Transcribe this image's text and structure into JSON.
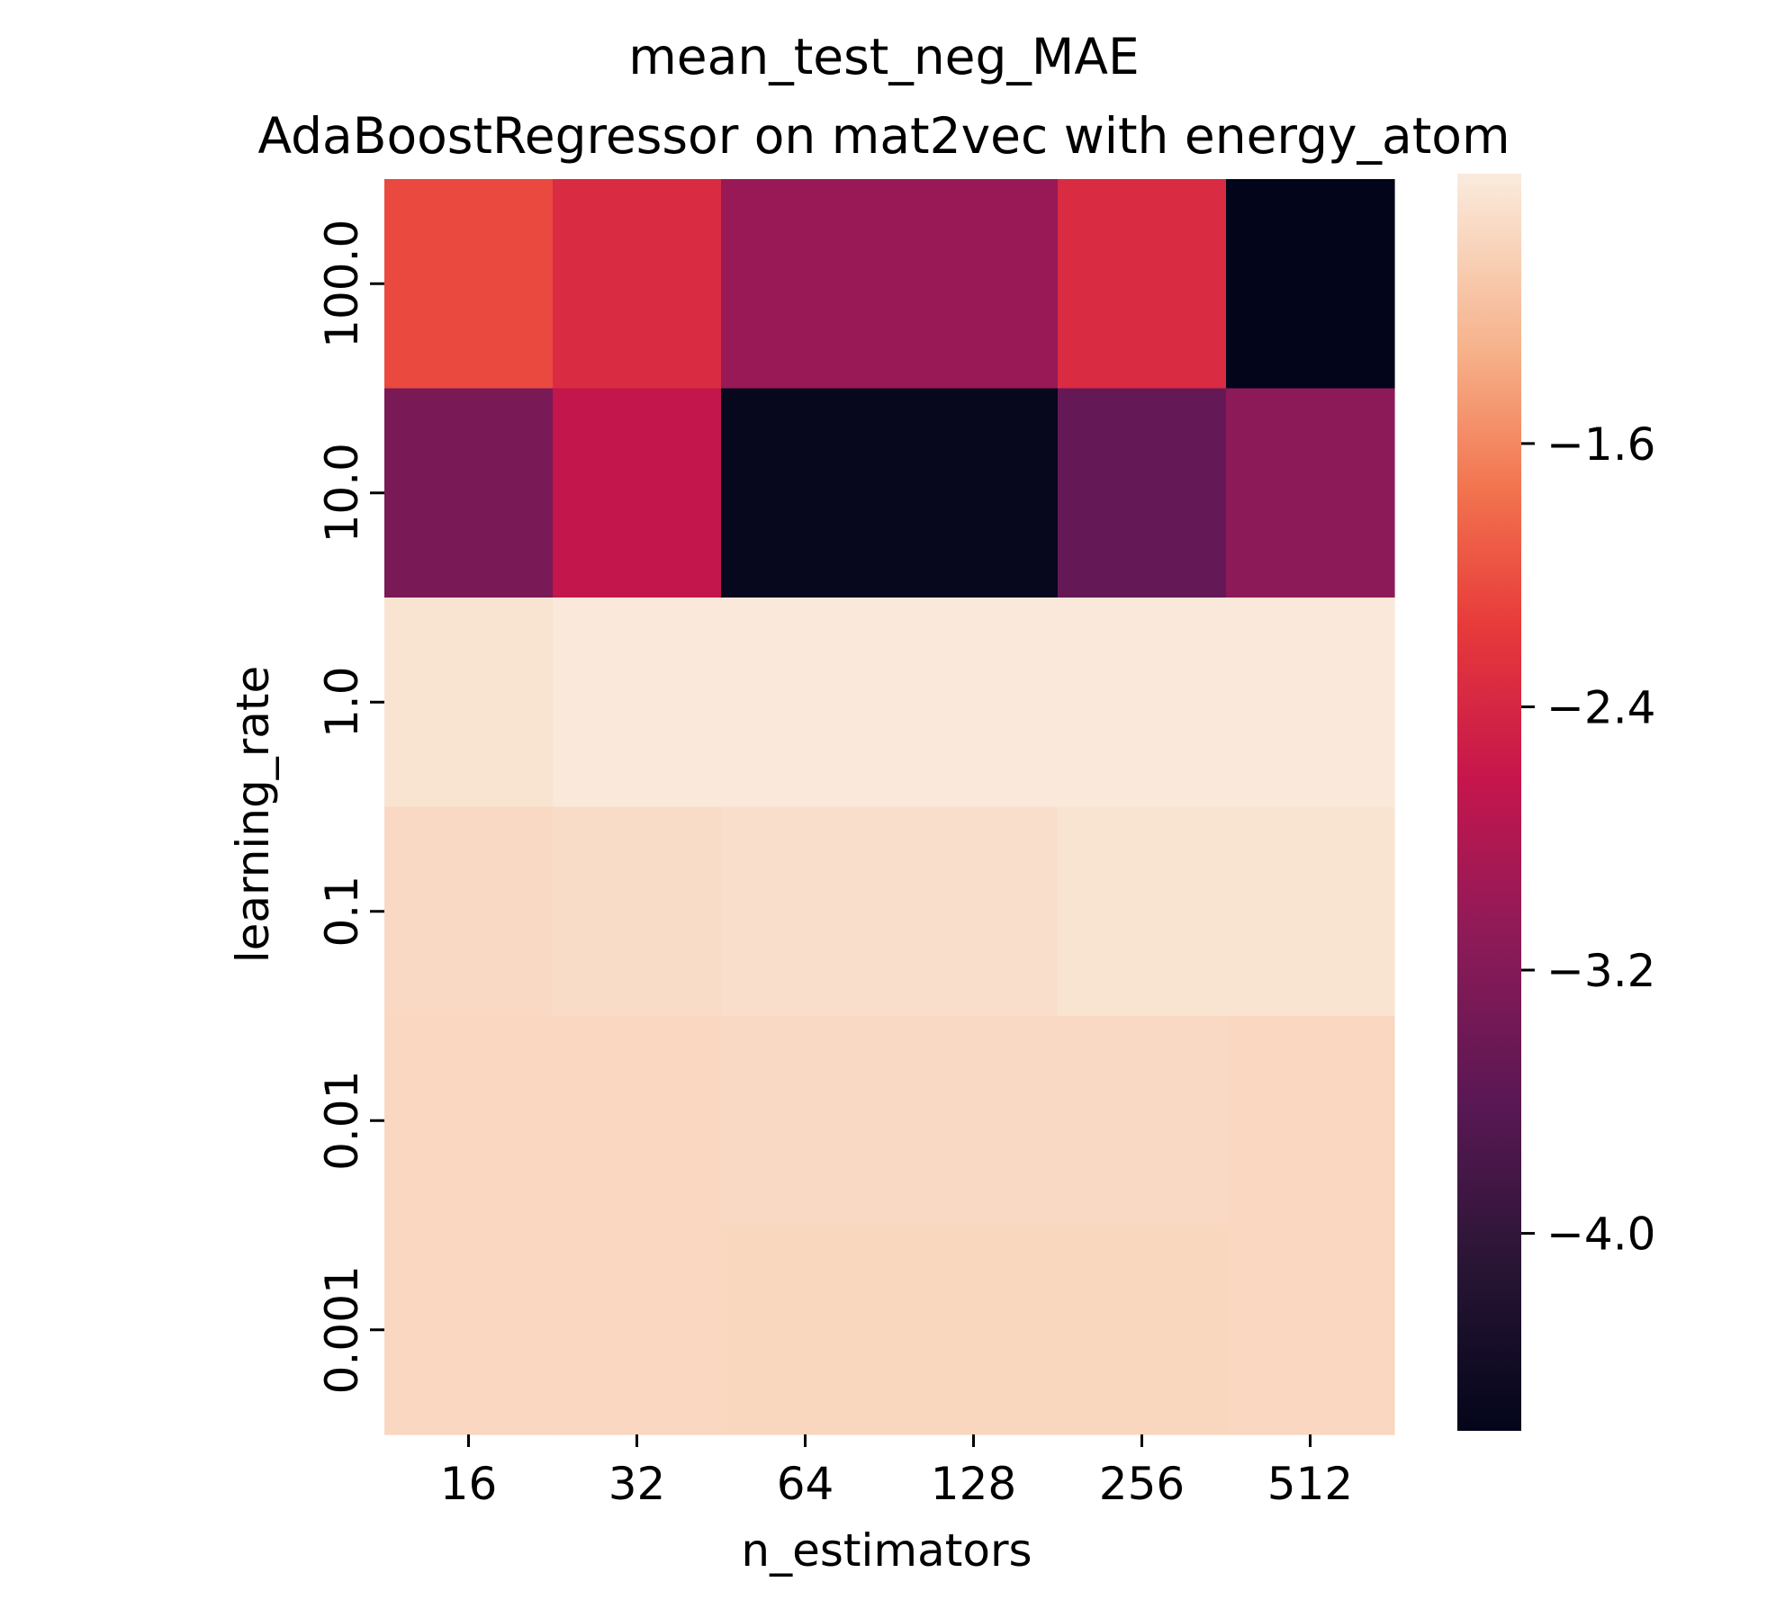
{
  "chart_data": {
    "type": "heatmap",
    "title": "mean_test_neg_MAE",
    "subtitle": "AdaBoostRegressor on mat2vec with energy_atom",
    "xlabel": "n_estimators",
    "ylabel": "learning_rate",
    "x_categories": [
      "16",
      "32",
      "64",
      "128",
      "256",
      "512"
    ],
    "y_categories": [
      "100.0",
      "10.0",
      "1.0",
      "0.1",
      "0.01",
      "0.001"
    ],
    "values": [
      [
        -2.05,
        -2.35,
        -3.0,
        -3.0,
        -2.35,
        -4.6
      ],
      [
        -3.3,
        -2.65,
        -4.55,
        -4.55,
        -3.5,
        -3.1
      ],
      [
        -0.85,
        -0.8,
        -0.8,
        -0.8,
        -0.8,
        -0.8
      ],
      [
        -0.95,
        -0.92,
        -0.9,
        -0.9,
        -0.85,
        -0.85
      ],
      [
        -0.97,
        -0.97,
        -0.95,
        -0.95,
        -0.95,
        -0.97
      ],
      [
        -0.97,
        -0.97,
        -0.98,
        -0.98,
        -0.98,
        -0.97
      ]
    ],
    "colorscale": "rocket",
    "colorbar": {
      "range": [
        -4.6,
        -0.78
      ],
      "ticks": [
        -1.6,
        -2.4,
        -3.2,
        -4.0
      ],
      "tick_labels": [
        "−1.6",
        "−2.4",
        "−3.2",
        "−4.0"
      ]
    }
  }
}
